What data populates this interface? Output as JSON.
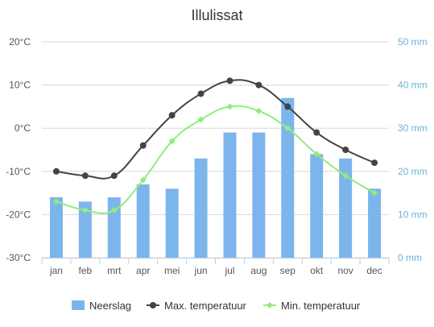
{
  "chart_data": {
    "type": "bar",
    "title": "Illulissat",
    "categories": [
      "jan",
      "feb",
      "mrt",
      "apr",
      "mei",
      "jun",
      "jul",
      "aug",
      "sep",
      "okt",
      "nov",
      "dec"
    ],
    "y_left": {
      "ticks": [
        "20°C",
        "10°C",
        "0°C",
        "-10°C",
        "-20°C",
        "-30°C"
      ],
      "min": -30,
      "max": 20,
      "step": 10,
      "unit": "°C"
    },
    "y_right": {
      "ticks": [
        "50 mm",
        "40 mm",
        "30 mm",
        "20 mm",
        "10 mm",
        "0 mm"
      ],
      "min": 0,
      "max": 50,
      "step": 10,
      "unit": "mm"
    },
    "grid": true,
    "legend_position": "bottom",
    "series": [
      {
        "name": "Neerslag",
        "type": "bar",
        "axis": "right",
        "color": "#7cb5ec",
        "values": [
          14,
          13,
          14,
          17,
          16,
          23,
          29,
          29,
          37,
          24,
          23,
          16
        ]
      },
      {
        "name": "Max. temperatuur",
        "type": "line",
        "axis": "left",
        "color": "#434348",
        "values": [
          -10,
          -11,
          -11,
          -4,
          3,
          8,
          11,
          10,
          5,
          -1,
          -5,
          -8
        ]
      },
      {
        "name": "Min. temperatuur",
        "type": "line",
        "axis": "left",
        "color": "#90ed7d",
        "values": [
          -17,
          -19,
          -19,
          -12,
          -3,
          2,
          5,
          4,
          0,
          -6,
          -11,
          -15
        ]
      }
    ]
  }
}
